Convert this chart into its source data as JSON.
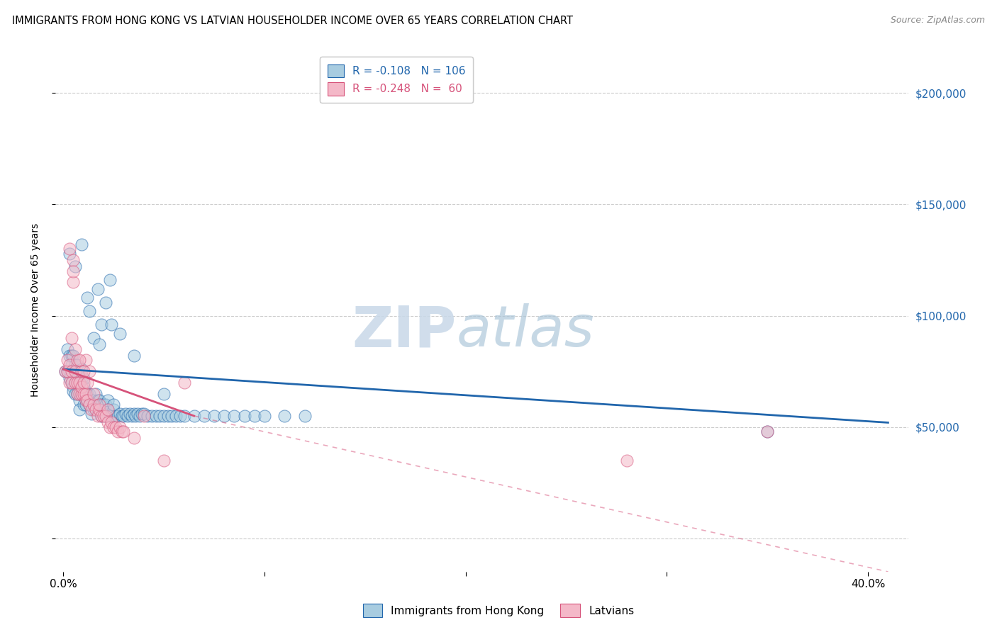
{
  "title": "IMMIGRANTS FROM HONG KONG VS LATVIAN HOUSEHOLDER INCOME OVER 65 YEARS CORRELATION CHART",
  "source": "Source: ZipAtlas.com",
  "ylabel": "Householder Income Over 65 years",
  "ylim": [
    -15000,
    220000
  ],
  "xlim": [
    -0.004,
    0.42
  ],
  "legend_blue_label": "R = -0.108   N = 106",
  "legend_pink_label": "R = -0.248   N =  60",
  "legend_bottom_blue": "Immigrants from Hong Kong",
  "legend_bottom_pink": "Latvians",
  "blue_color": "#a8cce0",
  "pink_color": "#f4b8c8",
  "blue_line_color": "#2166ac",
  "pink_line_color": "#d6527a",
  "grid_color": "#cccccc",
  "hk_x": [
    0.001,
    0.002,
    0.002,
    0.003,
    0.003,
    0.003,
    0.004,
    0.004,
    0.004,
    0.005,
    0.005,
    0.005,
    0.006,
    0.006,
    0.006,
    0.007,
    0.007,
    0.007,
    0.008,
    0.008,
    0.008,
    0.009,
    0.009,
    0.009,
    0.01,
    0.01,
    0.01,
    0.011,
    0.011,
    0.012,
    0.012,
    0.013,
    0.013,
    0.014,
    0.014,
    0.015,
    0.015,
    0.016,
    0.016,
    0.017,
    0.017,
    0.018,
    0.018,
    0.019,
    0.019,
    0.02,
    0.02,
    0.021,
    0.021,
    0.022,
    0.022,
    0.023,
    0.024,
    0.025,
    0.025,
    0.026,
    0.027,
    0.028,
    0.029,
    0.03,
    0.031,
    0.032,
    0.033,
    0.034,
    0.035,
    0.036,
    0.037,
    0.038,
    0.039,
    0.04,
    0.042,
    0.044,
    0.046,
    0.048,
    0.05,
    0.052,
    0.054,
    0.056,
    0.058,
    0.06,
    0.065,
    0.07,
    0.075,
    0.08,
    0.085,
    0.09,
    0.095,
    0.1,
    0.11,
    0.12,
    0.013,
    0.015,
    0.017,
    0.019,
    0.021,
    0.023,
    0.003,
    0.006,
    0.009,
    0.012,
    0.018,
    0.024,
    0.028,
    0.035,
    0.05,
    0.35
  ],
  "hk_y": [
    75000,
    75000,
    80000,
    75000,
    70000,
    80000,
    70000,
    75000,
    80000,
    70000,
    65000,
    80000,
    70000,
    65000,
    75000,
    65000,
    70000,
    75000,
    65000,
    70000,
    60000,
    65000,
    70000,
    75000,
    60000,
    65000,
    70000,
    60000,
    65000,
    60000,
    65000,
    60000,
    65000,
    55000,
    60000,
    55000,
    60000,
    55000,
    60000,
    55000,
    60000,
    55000,
    60000,
    55000,
    60000,
    55000,
    60000,
    55000,
    60000,
    55000,
    60000,
    55000,
    55000,
    55000,
    60000,
    55000,
    55000,
    55000,
    55000,
    55000,
    55000,
    55000,
    55000,
    55000,
    55000,
    55000,
    55000,
    55000,
    55000,
    55000,
    55000,
    55000,
    55000,
    55000,
    55000,
    55000,
    55000,
    55000,
    55000,
    55000,
    55000,
    55000,
    55000,
    55000,
    55000,
    55000,
    55000,
    55000,
    55000,
    55000,
    100000,
    90000,
    110000,
    95000,
    105000,
    115000,
    125000,
    120000,
    130000,
    105000,
    85000,
    95000,
    90000,
    80000,
    65000,
    48000
  ],
  "hk_y_override": [
    75000,
    75000,
    85000,
    75000,
    72000,
    82000,
    70000,
    78000,
    82000,
    68000,
    66000,
    82000,
    70000,
    65000,
    78000,
    65000,
    72000,
    78000,
    62000,
    70000,
    58000,
    65000,
    72000,
    76000,
    60000,
    68000,
    72000,
    60000,
    65000,
    62000,
    65000,
    60000,
    65000,
    56000,
    62000,
    58000,
    62000,
    58000,
    65000,
    58000,
    62000,
    58000,
    62000,
    55000,
    60000,
    55000,
    60000,
    55000,
    60000,
    58000,
    62000,
    55000,
    55000,
    58000,
    60000,
    55000,
    55000,
    56000,
    55000,
    55000,
    56000,
    55000,
    56000,
    55000,
    56000,
    55000,
    56000,
    55000,
    56000,
    56000,
    55000,
    55000,
    55000,
    55000,
    55000,
    55000,
    55000,
    55000,
    55000,
    55000,
    55000,
    55000,
    55000,
    55000,
    55000,
    55000,
    55000,
    55000,
    55000,
    55000,
    102000,
    90000,
    112000,
    96000,
    106000,
    116000,
    128000,
    122000,
    132000,
    108000,
    87000,
    96000,
    92000,
    82000,
    65000,
    48000
  ],
  "lv_x": [
    0.001,
    0.002,
    0.002,
    0.003,
    0.003,
    0.004,
    0.004,
    0.005,
    0.005,
    0.006,
    0.006,
    0.007,
    0.007,
    0.008,
    0.008,
    0.009,
    0.009,
    0.01,
    0.01,
    0.011,
    0.011,
    0.012,
    0.013,
    0.014,
    0.015,
    0.016,
    0.017,
    0.018,
    0.019,
    0.02,
    0.021,
    0.022,
    0.023,
    0.024,
    0.025,
    0.026,
    0.027,
    0.028,
    0.029,
    0.03,
    0.003,
    0.005,
    0.007,
    0.009,
    0.011,
    0.013,
    0.035,
    0.04,
    0.05,
    0.06,
    0.004,
    0.006,
    0.008,
    0.01,
    0.012,
    0.015,
    0.018,
    0.022,
    0.28,
    0.35
  ],
  "lv_y": [
    75000,
    75000,
    80000,
    70000,
    78000,
    70000,
    75000,
    125000,
    115000,
    70000,
    75000,
    65000,
    70000,
    65000,
    70000,
    65000,
    68000,
    65000,
    70000,
    62000,
    65000,
    62000,
    60000,
    58000,
    60000,
    58000,
    55000,
    58000,
    55000,
    55000,
    55000,
    52000,
    50000,
    52000,
    50000,
    50000,
    48000,
    50000,
    48000,
    48000,
    130000,
    120000,
    80000,
    75000,
    80000,
    75000,
    45000,
    55000,
    35000,
    70000,
    90000,
    85000,
    80000,
    75000,
    70000,
    65000,
    60000,
    58000,
    35000,
    48000
  ]
}
